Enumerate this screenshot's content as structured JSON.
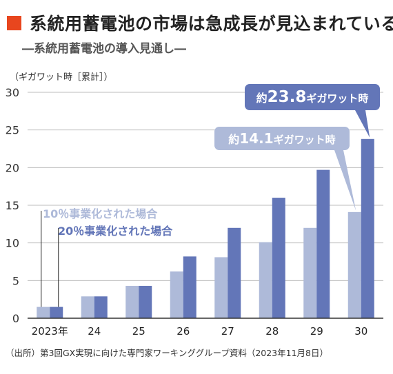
{
  "header": {
    "title": "系統用蓄電池の市場は急成長が見込まれている",
    "subtitle": "―系統用蓄電池の導入見通し―"
  },
  "source": "（出所）第3回GX実現に向けた専門家ワーキンググループ資料（2023年11月8日）",
  "colors": {
    "title_square": "#e8461e",
    "series_10": "#aebad9",
    "series_20": "#6376b8",
    "gridline": "#bdbdbd",
    "axis": "#333333"
  },
  "chart_data": {
    "type": "bar",
    "ylabel": "（ギガワット時［累計］）",
    "ylim": [
      0,
      30
    ],
    "yticks": [
      0,
      5,
      10,
      15,
      20,
      25,
      30
    ],
    "categories": [
      "2023年",
      "24",
      "25",
      "26",
      "27",
      "28",
      "29",
      "30"
    ],
    "series": [
      {
        "name": "10％事業化された場合",
        "values": [
          1.5,
          2.9,
          4.3,
          6.2,
          8.1,
          10.1,
          12.0,
          14.1
        ]
      },
      {
        "name": "20％事業化された場合",
        "values": [
          1.5,
          2.9,
          4.3,
          8.2,
          12.0,
          16.0,
          19.7,
          23.8
        ]
      }
    ],
    "grid": true,
    "legend_position": "top-left",
    "annotations": [
      {
        "series": 0,
        "category": "30",
        "prefix": "約",
        "number": "14.1",
        "suffix": "ギガワット時"
      },
      {
        "series": 1,
        "category": "30",
        "prefix": "約",
        "number": "23.8",
        "suffix": "ギガワット時"
      }
    ]
  }
}
